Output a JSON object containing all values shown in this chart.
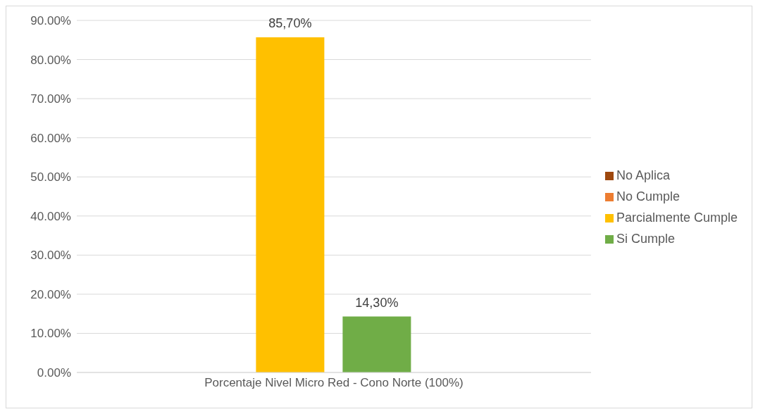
{
  "chart_data": {
    "type": "bar",
    "categories": [
      "Porcentaje Nivel Micro Red - Cono Norte (100%)"
    ],
    "series": [
      {
        "name": "No Cumple",
        "color": "#ed7d31",
        "values": [
          0
        ]
      },
      {
        "name": "Parcialmente Cumple",
        "color": "#ffc000",
        "values": [
          85.7
        ],
        "value_labels": [
          "85,70%"
        ]
      },
      {
        "name": "Si Cumple",
        "color": "#70ad47",
        "values": [
          14.3
        ],
        "value_labels": [
          "14,30%"
        ]
      },
      {
        "name": "No Aplica",
        "color": "#9e480e",
        "values": [
          0
        ]
      }
    ],
    "ylim": [
      0,
      90
    ],
    "yticks": [
      {
        "value": 0,
        "label": "0.00%"
      },
      {
        "value": 10,
        "label": "10.00%"
      },
      {
        "value": 20,
        "label": "20.00%"
      },
      {
        "value": 30,
        "label": "30.00%"
      },
      {
        "value": 40,
        "label": "40.00%"
      },
      {
        "value": 50,
        "label": "50.00%"
      },
      {
        "value": 60,
        "label": "60.00%"
      },
      {
        "value": 70,
        "label": "70.00%"
      },
      {
        "value": 80,
        "label": "80.00%"
      },
      {
        "value": 90,
        "label": "90.00%"
      }
    ],
    "grid": "y",
    "legend": "right"
  }
}
